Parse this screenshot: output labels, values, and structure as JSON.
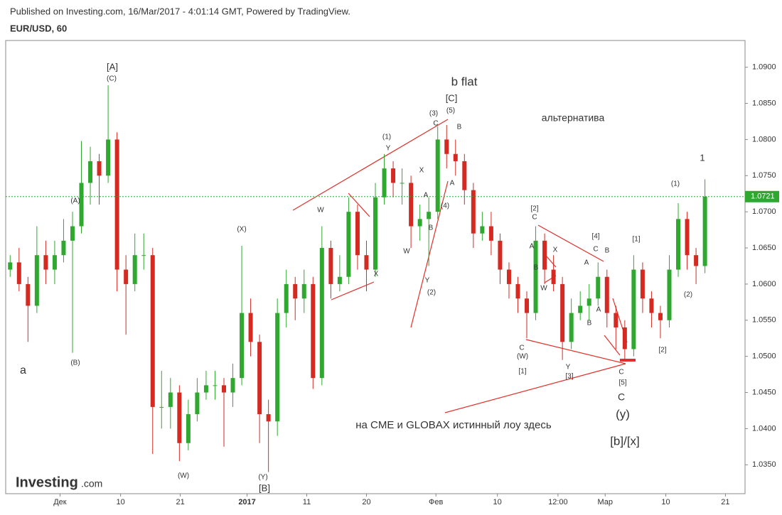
{
  "header": {
    "published": "Published on Investing.com, 16/Mar/2017 - 4:01:14 GMT, Powered by TradingView.",
    "symbol": "EUR/USD, 60",
    "logo": "Investing",
    "logo_suffix": ".com"
  },
  "chart_data": {
    "type": "candlestick",
    "up_color": "#2fa82f",
    "down_color": "#d42a22",
    "xlim": [
      -0.5,
      82.5
    ],
    "xticks": [
      {
        "value": 5.6,
        "label": "Дек"
      },
      {
        "value": 12.4,
        "label": "10"
      },
      {
        "value": 19.1,
        "label": "21"
      },
      {
        "value": 26.6,
        "label": "2017"
      },
      {
        "value": 33.3,
        "label": "11"
      },
      {
        "value": 40.0,
        "label": "20"
      },
      {
        "value": 47.8,
        "label": "Фев"
      },
      {
        "value": 54.7,
        "label": "10"
      },
      {
        "value": 61.5,
        "label": "12:00"
      },
      {
        "value": 66.8,
        "label": "Мар"
      },
      {
        "value": 73.6,
        "label": "10"
      },
      {
        "value": 80.3,
        "label": "21"
      }
    ],
    "ylim": [
      1.031,
      1.0937
    ],
    "yticks": [
      {
        "value": 1.035,
        "label": "1.0350"
      },
      {
        "value": 1.04,
        "label": "1.0400"
      },
      {
        "value": 1.045,
        "label": "1.0450"
      },
      {
        "value": 1.05,
        "label": "1.0500"
      },
      {
        "value": 1.055,
        "label": "1.0550"
      },
      {
        "value": 1.06,
        "label": "1.0600"
      },
      {
        "value": 1.065,
        "label": "1.0650"
      },
      {
        "value": 1.07,
        "label": "1.0700"
      },
      {
        "value": 1.075,
        "label": "1.0750"
      },
      {
        "value": 1.08,
        "label": "1.0800"
      },
      {
        "value": 1.085,
        "label": "1.0850"
      },
      {
        "value": 1.09,
        "label": "1.0900"
      }
    ],
    "last_price": 1.0721,
    "last_price_color": "#2fa82f",
    "open": [
      1.062,
      1.063,
      1.06,
      1.057,
      1.064,
      1.062,
      1.064,
      1.066,
      1.068,
      1.074,
      1.077,
      1.075,
      1.08,
      1.062,
      1.06,
      1.064,
      1.064,
      1.043,
      1.043,
      1.045,
      1.038,
      1.042,
      1.045,
      1.046,
      1.046,
      1.045,
      1.047,
      1.056,
      1.052,
      1.042,
      1.041,
      1.056,
      1.06,
      1.058,
      1.06,
      1.047,
      1.065,
      1.06,
      1.061,
      1.07,
      1.064,
      1.062,
      1.072,
      1.076,
      1.074,
      1.074,
      1.068,
      1.069,
      1.07,
      1.08,
      1.078,
      1.077,
      1.073,
      1.067,
      1.068,
      1.066,
      1.062,
      1.06,
      1.058,
      1.056,
      1.066,
      1.062,
      1.06,
      1.052,
      1.056,
      1.057,
      1.058,
      1.061,
      1.056,
      1.054,
      1.051,
      1.062,
      1.058,
      1.056,
      1.055,
      1.062,
      1.069,
      1.064,
      1.0625
    ],
    "high": [
      1.064,
      1.065,
      1.061,
      1.068,
      1.066,
      1.066,
      1.069,
      1.07,
      1.0798,
      1.079,
      1.078,
      1.0875,
      1.081,
      1.064,
      1.067,
      1.067,
      1.065,
      1.048,
      1.047,
      1.046,
      1.044,
      1.047,
      1.048,
      1.048,
      1.047,
      1.049,
      1.0653,
      1.058,
      1.053,
      1.044,
      1.058,
      1.062,
      1.061,
      1.062,
      1.061,
      1.068,
      1.066,
      1.064,
      1.072,
      1.071,
      1.066,
      1.074,
      1.078,
      1.077,
      1.076,
      1.075,
      1.071,
      1.072,
      1.0818,
      1.082,
      1.08,
      1.078,
      1.074,
      1.07,
      1.07,
      1.067,
      1.063,
      1.061,
      1.059,
      1.068,
      1.067,
      1.064,
      1.061,
      1.058,
      1.059,
      1.06,
      1.063,
      1.062,
      1.057,
      1.055,
      1.064,
      1.063,
      1.059,
      1.057,
      1.064,
      1.0712,
      1.07,
      1.065,
      1.0745
    ],
    "low": [
      1.061,
      1.059,
      1.052,
      1.056,
      1.06,
      1.06,
      1.063,
      1.0505,
      1.067,
      1.071,
      1.071,
      1.074,
      1.059,
      1.053,
      1.059,
      1.062,
      1.0365,
      1.04,
      1.04,
      1.0355,
      1.037,
      1.041,
      1.044,
      1.044,
      1.0375,
      1.043,
      1.046,
      1.05,
      1.038,
      1.034,
      1.039,
      1.054,
      1.055,
      1.056,
      1.0455,
      1.046,
      1.058,
      1.059,
      1.06,
      1.062,
      1.059,
      1.061,
      1.071,
      1.072,
      1.071,
      1.065,
      1.066,
      1.0625,
      1.069,
      1.076,
      1.075,
      1.071,
      1.065,
      1.066,
      1.064,
      1.06,
      1.058,
      1.056,
      1.0525,
      1.055,
      1.06,
      1.059,
      1.0495,
      1.051,
      1.055,
      1.055,
      1.057,
      1.054,
      1.051,
      1.0495,
      1.05,
      1.056,
      1.054,
      1.0525,
      1.054,
      1.061,
      1.062,
      1.06,
      1.0615
    ],
    "close": [
      1.063,
      1.06,
      1.057,
      1.064,
      1.062,
      1.064,
      1.066,
      1.068,
      1.074,
      1.077,
      1.075,
      1.08,
      1.062,
      1.06,
      1.064,
      1.064,
      1.043,
      1.043,
      1.045,
      1.038,
      1.042,
      1.045,
      1.046,
      1.046,
      1.045,
      1.047,
      1.056,
      1.052,
      1.042,
      1.041,
      1.056,
      1.06,
      1.058,
      1.06,
      1.047,
      1.065,
      1.06,
      1.061,
      1.07,
      1.064,
      1.062,
      1.072,
      1.076,
      1.074,
      1.074,
      1.068,
      1.069,
      1.07,
      1.08,
      1.078,
      1.077,
      1.073,
      1.067,
      1.068,
      1.066,
      1.062,
      1.06,
      1.058,
      1.056,
      1.066,
      1.062,
      1.06,
      1.052,
      1.056,
      1.057,
      1.058,
      1.061,
      1.056,
      1.054,
      1.051,
      1.062,
      1.058,
      1.056,
      1.055,
      1.062,
      1.069,
      1.064,
      1.0625,
      1.0721
    ],
    "annotations": [
      "a",
      "(B)",
      "(A)",
      "[A]",
      "(C)",
      "(W)",
      "(X)",
      "(Y)",
      "[B]",
      "W",
      "X",
      "(1)",
      "Y",
      "X",
      "A",
      "W",
      "B",
      "(4)",
      "A",
      "Y",
      "(2)",
      "(3)",
      "C",
      "[C]",
      "(5)",
      "B",
      "b flat",
      "альтернатива",
      "[2]",
      "C",
      "A",
      "X",
      "B",
      "W",
      "C",
      "(W)",
      "[1]",
      "Y",
      "[3]",
      "[4]",
      "C",
      "B",
      "A",
      "A",
      "B",
      "[1]",
      "(1)",
      "1",
      "(2)",
      "[2]",
      "C",
      "[5]",
      "C",
      "(y)",
      "[b]/[x]",
      "на CME и GLOBAX истинный лоу здесь"
    ]
  }
}
